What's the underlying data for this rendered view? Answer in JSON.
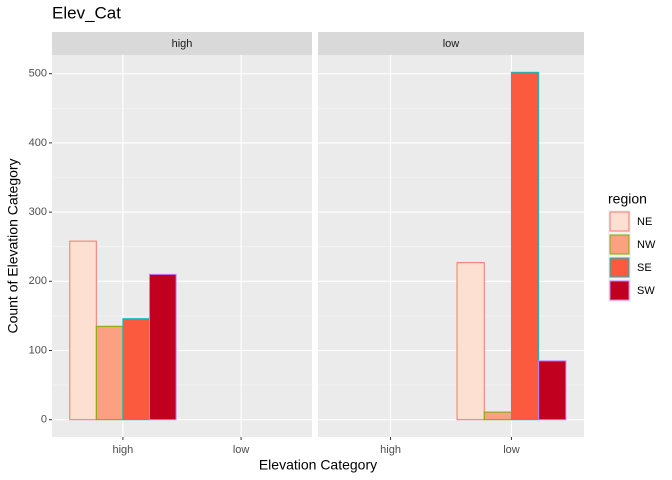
{
  "title": "Elev_Cat",
  "x_label": "Elevation Category",
  "y_label": "Count of Elevation Category",
  "legend_title": "region",
  "chart_data": [
    {
      "type": "bar",
      "title": "high",
      "categories": [
        "high",
        "low"
      ],
      "ylim": [
        -25,
        527
      ],
      "yticks": [
        0,
        100,
        200,
        300,
        400,
        500
      ],
      "grid": true,
      "series": [
        {
          "name": "NE",
          "color": "#fde0d2",
          "edge": "#f8766d",
          "values": [
            258,
            null
          ]
        },
        {
          "name": "NW",
          "color": "#fca082",
          "edge": "#7cae00",
          "values": [
            135,
            null
          ]
        },
        {
          "name": "SE",
          "color": "#fb5a3e",
          "edge": "#00bfc4",
          "values": [
            146,
            null
          ]
        },
        {
          "name": "SW",
          "color": "#c0001e",
          "edge": "#c77cff",
          "values": [
            210,
            null
          ]
        }
      ]
    },
    {
      "type": "bar",
      "title": "low",
      "categories": [
        "high",
        "low"
      ],
      "ylim": [
        -25,
        527
      ],
      "yticks": [
        0,
        100,
        200,
        300,
        400,
        500
      ],
      "grid": true,
      "series": [
        {
          "name": "NE",
          "color": "#fde0d2",
          "edge": "#f8766d",
          "values": [
            null,
            227
          ]
        },
        {
          "name": "NW",
          "color": "#fca082",
          "edge": "#7cae00",
          "values": [
            null,
            11
          ]
        },
        {
          "name": "SE",
          "color": "#fb5a3e",
          "edge": "#00bfc4",
          "values": [
            null,
            502
          ]
        },
        {
          "name": "SW",
          "color": "#c0001e",
          "edge": "#c77cff",
          "values": [
            null,
            85
          ]
        }
      ]
    }
  ]
}
